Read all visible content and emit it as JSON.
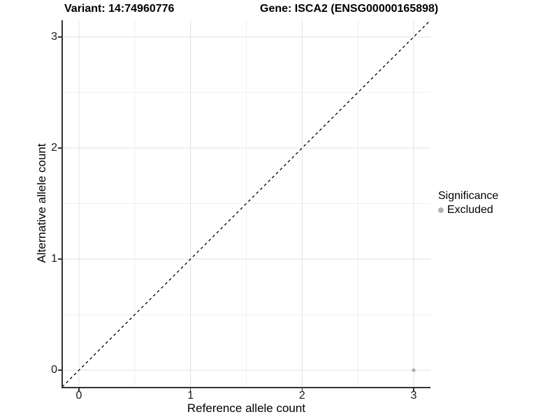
{
  "chart_data": {
    "type": "scatter",
    "titles": {
      "left": "Variant: 14:74960776",
      "right": "Gene: ISCA2 (ENSG00000165898)"
    },
    "xlabel": "Reference allele count",
    "ylabel": "Alternative allele count",
    "xlim": [
      -0.15,
      3.15
    ],
    "ylim": [
      -0.15,
      3.15
    ],
    "xticks": [
      0,
      1,
      2,
      3
    ],
    "yticks": [
      0,
      1,
      2,
      3
    ],
    "minor_ticks": [
      0.5,
      1.5,
      2.5
    ],
    "grid": true,
    "legend_position": "right",
    "legend": {
      "title": "Significance",
      "items": [
        {
          "label": "Excluded",
          "color": "#b3b3b3"
        }
      ]
    },
    "series": [
      {
        "name": "Excluded",
        "color": "#b3b3b3",
        "points": [
          {
            "x": 3,
            "y": 0
          }
        ]
      }
    ],
    "annotations": [
      {
        "type": "identity-line",
        "style": "dashed",
        "color": "#000000",
        "from": [
          -0.15,
          -0.15
        ],
        "to": [
          3.15,
          3.15
        ]
      }
    ],
    "colors": {
      "background": "#ffffff",
      "grid_major": "#e2e2e2",
      "grid_minor": "#f0f0f0",
      "axis": "#333333",
      "text": "#1a1a1a"
    }
  }
}
